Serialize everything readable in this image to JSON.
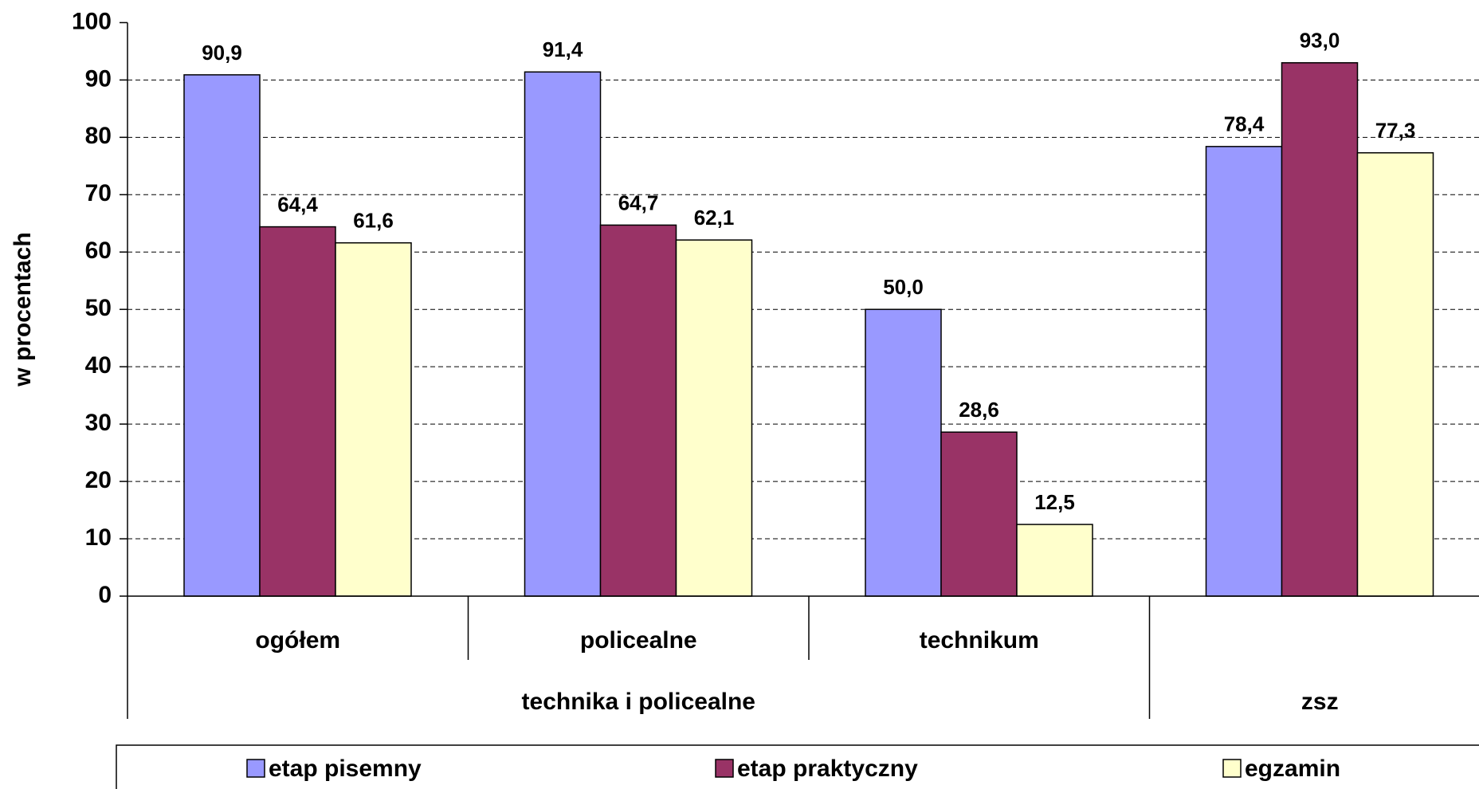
{
  "chart_data": {
    "type": "bar",
    "y_label": "w procentach",
    "categories": [
      "ogółem",
      "policealne",
      "technikum",
      null
    ],
    "category_groups": [
      {
        "label": "technika i policealne",
        "span": 3
      },
      {
        "label": "zsz",
        "span": 1
      }
    ],
    "series": [
      {
        "name": "etap pisemny",
        "color": "#9999ff",
        "values": [
          90.9,
          91.4,
          50.0,
          78.4
        ],
        "value_labels": [
          "90,9",
          "91,4",
          "50,0",
          "78,4"
        ]
      },
      {
        "name": "etap praktyczny",
        "color": "#993366",
        "values": [
          64.4,
          64.7,
          28.6,
          93.0
        ],
        "value_labels": [
          "64,4",
          "64,7",
          "28,6",
          "93,0"
        ]
      },
      {
        "name": "egzamin",
        "color": "#ffffcc",
        "values": [
          61.6,
          62.1,
          12.5,
          77.3
        ],
        "value_labels": [
          "61,6",
          "62,1",
          "12,5",
          "77,3"
        ]
      }
    ],
    "ylim": [
      0,
      100
    ],
    "yticks": [
      0,
      10,
      20,
      30,
      40,
      50,
      60,
      70,
      80,
      90,
      100
    ],
    "grid": true
  }
}
